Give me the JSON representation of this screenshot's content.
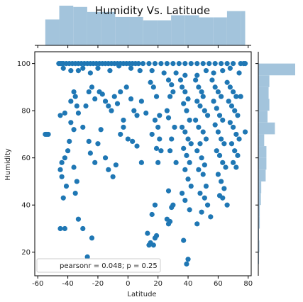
{
  "chart_data": {
    "type": "scatter",
    "title": "Humidity Vs. Latitude",
    "xlabel": "Latitude",
    "ylabel": "Humidity",
    "xlim": [
      -62,
      82
    ],
    "ylim": [
      10,
      105
    ],
    "xticks": [
      -60,
      -40,
      -20,
      0,
      20,
      40,
      60,
      80
    ],
    "yticks": [
      20,
      40,
      60,
      80,
      100
    ],
    "grid": false,
    "legend": {
      "text": "pearsonr = 0.048; p = 0.25",
      "placement": "lower-left"
    },
    "colors": {
      "points": "#1f77b4",
      "hist": "#a3c4dc",
      "axes": "#000000"
    },
    "marginal_x": {
      "bins": [
        -55,
        -45.7,
        -36.4,
        -27.1,
        -17.8,
        -8.5,
        0.8,
        10.1,
        19.4,
        28.7,
        38.0,
        47.3,
        56.6,
        65.9,
        75.2,
        78
      ],
      "counts": [
        0.62,
        0.95,
        0.92,
        0.8,
        0.8,
        0.68,
        0.68,
        0.6,
        0.6,
        0.72,
        0.72,
        0.67,
        0.67,
        0.82,
        0.82
      ]
    },
    "marginal_y": {
      "bins": [
        15,
        20,
        25,
        30,
        35,
        40,
        45,
        50,
        55,
        60,
        65,
        70,
        75,
        80,
        85,
        90,
        95,
        100
      ],
      "counts": [
        0.02,
        0.03,
        0.02,
        0.04,
        0.04,
        0.07,
        0.08,
        0.2,
        0.22,
        0.22,
        0.16,
        0.45,
        0.25,
        0.3,
        0.28,
        0.3,
        1.0
      ]
    },
    "points": [
      [
        -55,
        70
      ],
      [
        -54,
        70
      ],
      [
        -53,
        70
      ],
      [
        -46,
        100
      ],
      [
        -45,
        100
      ],
      [
        -44,
        100
      ],
      [
        -43,
        100
      ],
      [
        -41,
        100
      ],
      [
        -39,
        100
      ],
      [
        -37,
        100
      ],
      [
        -35,
        100
      ],
      [
        -33,
        100
      ],
      [
        -31,
        100
      ],
      [
        -29,
        100
      ],
      [
        -27,
        100
      ],
      [
        -25,
        100
      ],
      [
        -23,
        100
      ],
      [
        -21,
        100
      ],
      [
        -19,
        100
      ],
      [
        -17,
        100
      ],
      [
        -15,
        100
      ],
      [
        -13,
        100
      ],
      [
        -11,
        100
      ],
      [
        -9,
        100
      ],
      [
        -7,
        100
      ],
      [
        -5,
        100
      ],
      [
        -3,
        100
      ],
      [
        -1,
        100
      ],
      [
        1,
        100
      ],
      [
        3,
        100
      ],
      [
        5,
        100
      ],
      [
        7,
        100
      ],
      [
        10,
        100
      ],
      [
        14,
        100
      ],
      [
        18,
        100
      ],
      [
        22,
        100
      ],
      [
        26,
        100
      ],
      [
        30,
        100
      ],
      [
        34,
        100
      ],
      [
        38,
        100
      ],
      [
        42,
        100
      ],
      [
        46,
        100
      ],
      [
        50,
        100
      ],
      [
        54,
        100
      ],
      [
        58,
        100
      ],
      [
        62,
        100
      ],
      [
        66,
        100
      ],
      [
        70,
        100
      ],
      [
        75,
        100
      ],
      [
        78,
        100
      ],
      [
        -43,
        98
      ],
      [
        -38,
        97
      ],
      [
        -33,
        97
      ],
      [
        -30,
        98
      ],
      [
        -25,
        96
      ],
      [
        -20,
        98
      ],
      [
        -12,
        97
      ],
      [
        -6,
        99
      ],
      [
        2,
        98
      ],
      [
        8,
        97
      ],
      [
        16,
        97
      ],
      [
        24,
        96
      ],
      [
        32,
        96
      ],
      [
        38,
        95
      ],
      [
        46,
        95
      ],
      [
        52,
        97
      ],
      [
        57,
        96
      ],
      [
        63,
        97
      ],
      [
        68,
        98
      ],
      [
        74,
        96
      ],
      [
        -45,
        78
      ],
      [
        -42,
        79
      ],
      [
        -38,
        84
      ],
      [
        -36,
        88
      ],
      [
        -35,
        86
      ],
      [
        -34,
        82
      ],
      [
        -33,
        79
      ],
      [
        -38,
        75
      ],
      [
        -36,
        72
      ],
      [
        -39,
        67
      ],
      [
        -40,
        63
      ],
      [
        -42,
        60
      ],
      [
        -44,
        58
      ],
      [
        -45,
        55
      ],
      [
        -44,
        52
      ],
      [
        -41,
        48
      ],
      [
        -43,
        43
      ],
      [
        -36,
        56
      ],
      [
        -34,
        50
      ],
      [
        -35,
        45
      ],
      [
        -33,
        34
      ],
      [
        -30,
        30
      ],
      [
        -27,
        18
      ],
      [
        -24,
        26
      ],
      [
        -45,
        30
      ],
      [
        -42,
        30
      ],
      [
        -30,
        73
      ],
      [
        -28,
        82
      ],
      [
        -26,
        88
      ],
      [
        -24,
        90
      ],
      [
        -22,
        85
      ],
      [
        -19,
        88
      ],
      [
        -17,
        87
      ],
      [
        -15,
        84
      ],
      [
        -13,
        82
      ],
      [
        -11,
        80
      ],
      [
        -9,
        86
      ],
      [
        -7,
        83
      ],
      [
        -5,
        88
      ],
      [
        -3,
        76
      ],
      [
        -1,
        90
      ],
      [
        2,
        85
      ],
      [
        4,
        80
      ],
      [
        6,
        78
      ],
      [
        9,
        84
      ],
      [
        12,
        79
      ],
      [
        -26,
        67
      ],
      [
        -25,
        62
      ],
      [
        -22,
        58
      ],
      [
        -20,
        66
      ],
      [
        -18,
        72
      ],
      [
        -15,
        60
      ],
      [
        -13,
        55
      ],
      [
        -10,
        52
      ],
      [
        -8,
        57
      ],
      [
        -5,
        70
      ],
      [
        -3,
        73
      ],
      [
        0,
        68
      ],
      [
        3,
        67
      ],
      [
        6,
        65
      ],
      [
        9,
        58
      ],
      [
        15,
        92
      ],
      [
        17,
        90
      ],
      [
        19,
        86
      ],
      [
        21,
        78
      ],
      [
        18,
        76
      ],
      [
        20,
        73
      ],
      [
        16,
        70
      ],
      [
        21,
        68
      ],
      [
        19,
        64
      ],
      [
        22,
        63
      ],
      [
        20,
        58
      ],
      [
        16,
        36
      ],
      [
        18,
        40
      ],
      [
        13,
        28
      ],
      [
        14,
        23
      ],
      [
        17,
        23
      ],
      [
        18,
        26
      ],
      [
        19,
        27
      ],
      [
        15,
        24
      ],
      [
        27,
        93
      ],
      [
        29,
        91
      ],
      [
        30,
        88
      ],
      [
        28,
        86
      ],
      [
        26,
        80
      ],
      [
        27,
        77
      ],
      [
        31,
        73
      ],
      [
        29,
        68
      ],
      [
        28,
        63
      ],
      [
        32,
        58
      ],
      [
        27,
        46
      ],
      [
        30,
        40
      ],
      [
        29,
        39
      ],
      [
        28,
        33
      ],
      [
        26,
        34
      ],
      [
        27,
        32
      ],
      [
        35,
        93
      ],
      [
        36,
        90
      ],
      [
        38,
        88
      ],
      [
        40,
        85
      ],
      [
        37,
        83
      ],
      [
        39,
        80
      ],
      [
        41,
        76
      ],
      [
        36,
        73
      ],
      [
        38,
        71
      ],
      [
        40,
        68
      ],
      [
        42,
        66
      ],
      [
        37,
        64
      ],
      [
        39,
        61
      ],
      [
        41,
        58
      ],
      [
        38,
        55
      ],
      [
        40,
        51
      ],
      [
        42,
        48
      ],
      [
        36,
        45
      ],
      [
        38,
        42
      ],
      [
        41,
        38
      ],
      [
        40,
        17
      ],
      [
        39,
        15
      ],
      [
        37,
        25
      ],
      [
        46,
        32
      ],
      [
        45,
        93
      ],
      [
        47,
        90
      ],
      [
        49,
        88
      ],
      [
        50,
        86
      ],
      [
        46,
        84
      ],
      [
        48,
        82
      ],
      [
        51,
        80
      ],
      [
        53,
        78
      ],
      [
        45,
        76
      ],
      [
        47,
        73
      ],
      [
        50,
        71
      ],
      [
        52,
        68
      ],
      [
        48,
        66
      ],
      [
        46,
        63
      ],
      [
        49,
        60
      ],
      [
        51,
        57
      ],
      [
        47,
        55
      ],
      [
        50,
        53
      ],
      [
        52,
        48
      ],
      [
        48,
        45
      ],
      [
        53,
        40
      ],
      [
        55,
        35
      ],
      [
        49,
        37
      ],
      [
        51,
        43
      ],
      [
        56,
        93
      ],
      [
        58,
        90
      ],
      [
        60,
        88
      ],
      [
        62,
        86
      ],
      [
        57,
        84
      ],
      [
        59,
        81
      ],
      [
        61,
        78
      ],
      [
        63,
        76
      ],
      [
        58,
        74
      ],
      [
        60,
        71
      ],
      [
        62,
        68
      ],
      [
        64,
        66
      ],
      [
        59,
        63
      ],
      [
        61,
        61
      ],
      [
        63,
        58
      ],
      [
        65,
        56
      ],
      [
        60,
        53
      ],
      [
        62,
        50
      ],
      [
        64,
        47
      ],
      [
        61,
        44
      ],
      [
        63,
        43
      ],
      [
        66,
        40
      ],
      [
        66,
        92
      ],
      [
        68,
        90
      ],
      [
        70,
        88
      ],
      [
        72,
        86
      ],
      [
        67,
        84
      ],
      [
        69,
        82
      ],
      [
        71,
        80
      ],
      [
        73,
        78
      ],
      [
        68,
        75
      ],
      [
        70,
        73
      ],
      [
        72,
        70
      ],
      [
        74,
        68
      ],
      [
        69,
        66
      ],
      [
        71,
        63
      ],
      [
        73,
        61
      ],
      [
        70,
        58
      ],
      [
        72,
        56
      ],
      [
        78,
        71
      ],
      [
        77,
        100
      ],
      [
        75,
        86
      ]
    ]
  }
}
